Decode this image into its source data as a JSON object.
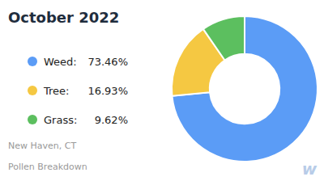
{
  "chart_data": {
    "type": "pie",
    "title": "October 2022",
    "subtitle": [
      "New Haven, CT",
      "Pollen Breakdown"
    ],
    "categories": [
      "Weed:",
      "Tree:",
      "Grass:"
    ],
    "values": [
      73.46,
      16.93,
      9.62
    ],
    "value_labels": [
      "73.46%",
      "16.93%",
      "9.62%"
    ],
    "colors": [
      "#5B9CF6",
      "#F5C842",
      "#5CBF5F"
    ],
    "legend": "left",
    "annotations": [
      "w"
    ]
  }
}
